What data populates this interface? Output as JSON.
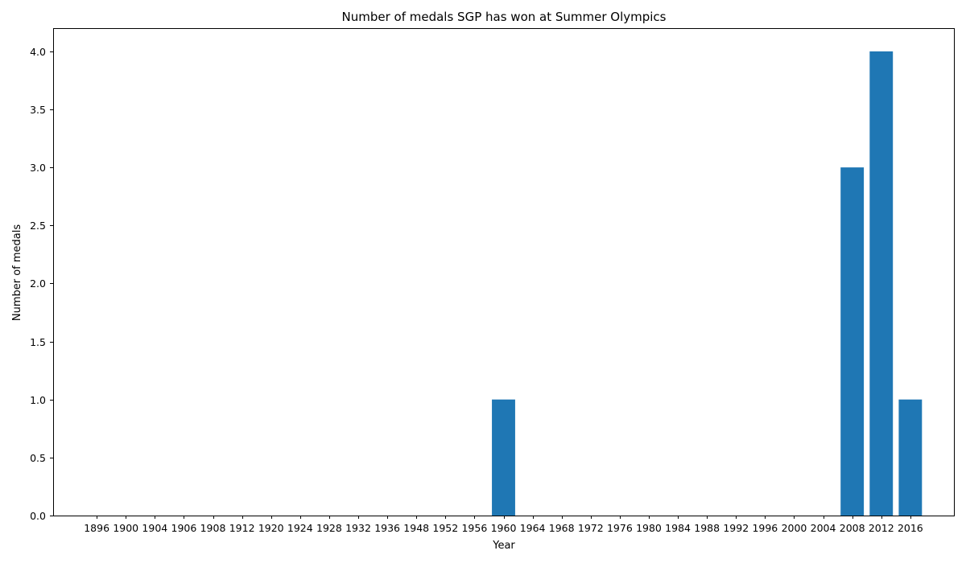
{
  "chart_data": {
    "type": "bar",
    "title": "Number of medals SGP has won at Summer Olympics",
    "xlabel": "Year",
    "ylabel": "Number of medals",
    "categories": [
      "1896",
      "1900",
      "1904",
      "1906",
      "1908",
      "1912",
      "1920",
      "1924",
      "1928",
      "1932",
      "1936",
      "1948",
      "1952",
      "1956",
      "1960",
      "1964",
      "1968",
      "1972",
      "1976",
      "1980",
      "1984",
      "1988",
      "1992",
      "1996",
      "2000",
      "2004",
      "2008",
      "2012",
      "2016"
    ],
    "values": [
      0,
      0,
      0,
      0,
      0,
      0,
      0,
      0,
      0,
      0,
      0,
      0,
      0,
      0,
      1,
      0,
      0,
      0,
      0,
      0,
      0,
      0,
      0,
      0,
      0,
      0,
      3,
      4,
      1
    ],
    "ylim": [
      0,
      4.2
    ],
    "yticks": [
      "0.0",
      "0.5",
      "1.0",
      "1.5",
      "2.0",
      "2.5",
      "3.0",
      "3.5",
      "4.0"
    ],
    "grid": false,
    "colors": {
      "bar": "#1f77b4"
    }
  }
}
